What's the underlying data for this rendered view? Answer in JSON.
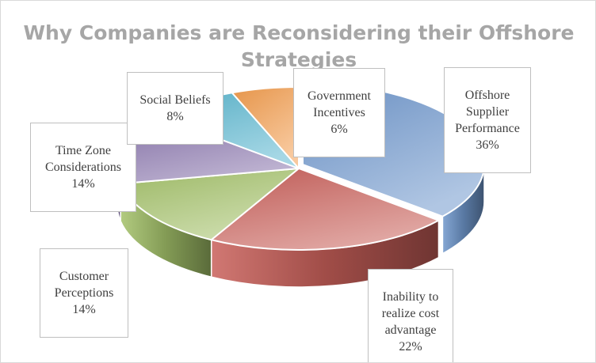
{
  "chart_data": {
    "type": "pie",
    "title": "Why Companies are Reconsidering their Offshore Strategies",
    "style": "3d-exploded",
    "labels_style": "callouts-with-category-and-percent",
    "legend": "none",
    "series": [
      {
        "values": [
          36,
          22,
          14,
          14,
          8,
          6
        ],
        "labels": [
          "Offshore Supplier Performance",
          "Inability to realize cost advantage",
          "Customer Perceptions",
          "Time Zone Considerations",
          "Social Beliefs",
          "Government Incentives"
        ],
        "label_lines": [
          "Offshore\nSupplier\nPerformance",
          "Inability to\nrealize cost\nadvantage",
          "Customer\nPerceptions",
          "Time Zone\nConsiderations",
          "Social Beliefs",
          "Government\nIncentives"
        ],
        "percent_labels": [
          "36%",
          "22%",
          "14%",
          "14%",
          "8%",
          "6%"
        ],
        "colors": [
          "#6f97cc",
          "#c9605a",
          "#a4c26a",
          "#8a76ae",
          "#5cb7cf",
          "#f29d4e"
        ]
      }
    ]
  }
}
